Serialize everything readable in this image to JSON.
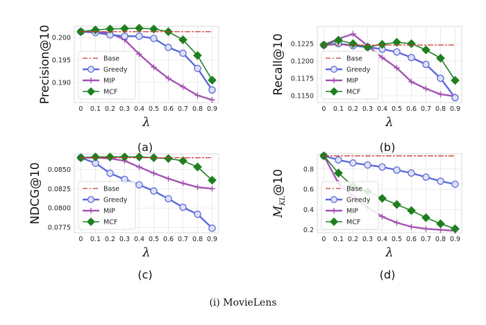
{
  "caption": "(i)  MovieLens",
  "colors": {
    "base": "#cc3333",
    "greedy": "#5a68d8",
    "mip": "#a452b2",
    "mcf": "#1f7f1f",
    "grid": "#e6e6e6",
    "frame": "#cfcfcf"
  },
  "chart_data": [
    {
      "type": "line",
      "panel_label": "(a)",
      "xlabel": "λ",
      "ylabel": "Precision@10",
      "x": [
        0,
        0.1,
        0.2,
        0.3,
        0.4,
        0.5,
        0.6,
        0.7,
        0.8,
        0.9
      ],
      "x_tick_labels": [
        "0",
        "0.1",
        "0.2",
        "0.3",
        "0.4",
        "0.5",
        "0.6",
        "0.7",
        "0.8",
        "0.9"
      ],
      "ylim": [
        0.1855,
        0.2025
      ],
      "y_ticks": [
        0.19,
        0.195,
        0.2
      ],
      "y_tick_labels": [
        "0.190",
        "0.195",
        "0.200"
      ],
      "legend": "bottom-left",
      "legend_entries": [
        "Base",
        "Greedy",
        "MIP",
        "MCF"
      ],
      "series": [
        {
          "name": "Base",
          "values": [
            0.2013,
            0.2013,
            0.2013,
            0.2013,
            0.2013,
            0.2013,
            0.2013,
            0.2013,
            0.2013,
            0.2013
          ]
        },
        {
          "name": "Greedy",
          "values": [
            0.2013,
            0.2011,
            0.2006,
            0.2003,
            0.2003,
            0.1998,
            0.1978,
            0.1965,
            0.1931,
            0.1883
          ]
        },
        {
          "name": "MIP",
          "values": [
            0.2013,
            0.2013,
            0.201,
            0.1995,
            0.1963,
            0.1934,
            0.1909,
            0.189,
            0.1871,
            0.1861
          ]
        },
        {
          "name": "MCF",
          "values": [
            0.2013,
            0.2017,
            0.2019,
            0.202,
            0.2021,
            0.2019,
            0.2013,
            0.1995,
            0.196,
            0.1905
          ]
        }
      ]
    },
    {
      "type": "line",
      "panel_label": "(b)",
      "xlabel": "λ",
      "ylabel": "Recall@10",
      "x": [
        0,
        0.1,
        0.2,
        0.3,
        0.4,
        0.5,
        0.6,
        0.7,
        0.8,
        0.9
      ],
      "x_tick_labels": [
        "0",
        "0.1",
        "0.2",
        "0.3",
        "0.4",
        "0.5",
        "0.6",
        "0.7",
        "0.8",
        "0.9"
      ],
      "ylim": [
        0.114,
        0.125
      ],
      "y_ticks": [
        0.115,
        0.1175,
        0.12,
        0.1225
      ],
      "y_tick_labels": [
        "0.1150",
        "0.1175",
        "0.1200",
        "0.1225"
      ],
      "legend": "bottom-left",
      "legend_entries": [
        "Base",
        "Greedy",
        "MIP",
        "MCF"
      ],
      "series": [
        {
          "name": "Base",
          "values": [
            0.1223,
            0.1223,
            0.1223,
            0.1223,
            0.1223,
            0.1223,
            0.1223,
            0.1223,
            0.1223,
            0.1223
          ]
        },
        {
          "name": "Greedy",
          "values": [
            0.1223,
            0.1225,
            0.1222,
            0.122,
            0.1217,
            0.1213,
            0.1205,
            0.1195,
            0.1175,
            0.1147
          ]
        },
        {
          "name": "MIP",
          "values": [
            0.1223,
            0.1232,
            0.1239,
            0.1222,
            0.1205,
            0.119,
            0.117,
            0.116,
            0.1152,
            0.1149
          ]
        },
        {
          "name": "MCF",
          "values": [
            0.1223,
            0.123,
            0.1225,
            0.122,
            0.1224,
            0.1227,
            0.1225,
            0.1216,
            0.1204,
            0.1172
          ]
        }
      ]
    },
    {
      "type": "line",
      "panel_label": "(c)",
      "xlabel": "λ",
      "ylabel": "NDCG@10",
      "x": [
        0,
        0.1,
        0.2,
        0.3,
        0.4,
        0.5,
        0.6,
        0.7,
        0.8,
        0.9
      ],
      "x_tick_labels": [
        "0",
        "0.1",
        "0.2",
        "0.3",
        "0.4",
        "0.5",
        "0.6",
        "0.7",
        "0.8",
        "0.9"
      ],
      "ylim": [
        0.0768,
        0.087
      ],
      "y_ticks": [
        0.0775,
        0.08,
        0.0825,
        0.085
      ],
      "y_tick_labels": [
        "0.0775",
        "0.0800",
        "0.0825",
        "0.0850"
      ],
      "legend": "bottom-left",
      "legend_entries": [
        "Base",
        "Greedy",
        "MIP",
        "MCF"
      ],
      "series": [
        {
          "name": "Base",
          "values": [
            0.0865,
            0.0865,
            0.0865,
            0.0865,
            0.0865,
            0.0865,
            0.0865,
            0.0865,
            0.0865,
            0.0865
          ]
        },
        {
          "name": "Greedy",
          "values": [
            0.0865,
            0.0858,
            0.0845,
            0.0837,
            0.083,
            0.0822,
            0.0812,
            0.0801,
            0.0792,
            0.0774
          ]
        },
        {
          "name": "MIP",
          "values": [
            0.0865,
            0.0865,
            0.0864,
            0.0861,
            0.0853,
            0.0845,
            0.0838,
            0.0832,
            0.0827,
            0.0825
          ]
        },
        {
          "name": "MCF",
          "values": [
            0.0865,
            0.0866,
            0.0866,
            0.0866,
            0.0866,
            0.0865,
            0.0864,
            0.0861,
            0.0853,
            0.0836
          ]
        }
      ]
    },
    {
      "type": "line",
      "panel_label": "(d)",
      "xlabel": "λ",
      "ylabel": "M_KL@10",
      "ylabel_script": "M",
      "ylabel_subscript": "KL",
      "ylabel_suffix": "@10",
      "x": [
        0,
        0.1,
        0.2,
        0.3,
        0.4,
        0.5,
        0.6,
        0.7,
        0.8,
        0.9
      ],
      "x_tick_labels": [
        "0",
        "0.1",
        "0.2",
        "0.3",
        "0.4",
        "0.5",
        "0.6",
        "0.7",
        "0.8",
        "0.9"
      ],
      "ylim": [
        0.17,
        0.95
      ],
      "y_ticks": [
        0.2,
        0.4,
        0.6,
        0.8
      ],
      "y_tick_labels": [
        "0.2",
        "0.4",
        "0.6",
        "0.8"
      ],
      "legend": "bottom-left",
      "legend_entries": [
        "Base",
        "Greedy",
        "MIP",
        "MCF"
      ],
      "series": [
        {
          "name": "Base",
          "values": [
            0.93,
            0.93,
            0.93,
            0.93,
            0.93,
            0.93,
            0.93,
            0.93,
            0.93,
            0.93
          ]
        },
        {
          "name": "Greedy",
          "values": [
            0.93,
            0.89,
            0.86,
            0.84,
            0.82,
            0.79,
            0.76,
            0.72,
            0.68,
            0.65
          ]
        },
        {
          "name": "MIP",
          "values": [
            0.93,
            0.66,
            0.53,
            0.42,
            0.33,
            0.27,
            0.23,
            0.21,
            0.2,
            0.19
          ]
        },
        {
          "name": "MCF",
          "values": [
            0.93,
            0.76,
            0.63,
            0.58,
            0.51,
            0.45,
            0.39,
            0.32,
            0.26,
            0.21
          ]
        }
      ]
    }
  ]
}
